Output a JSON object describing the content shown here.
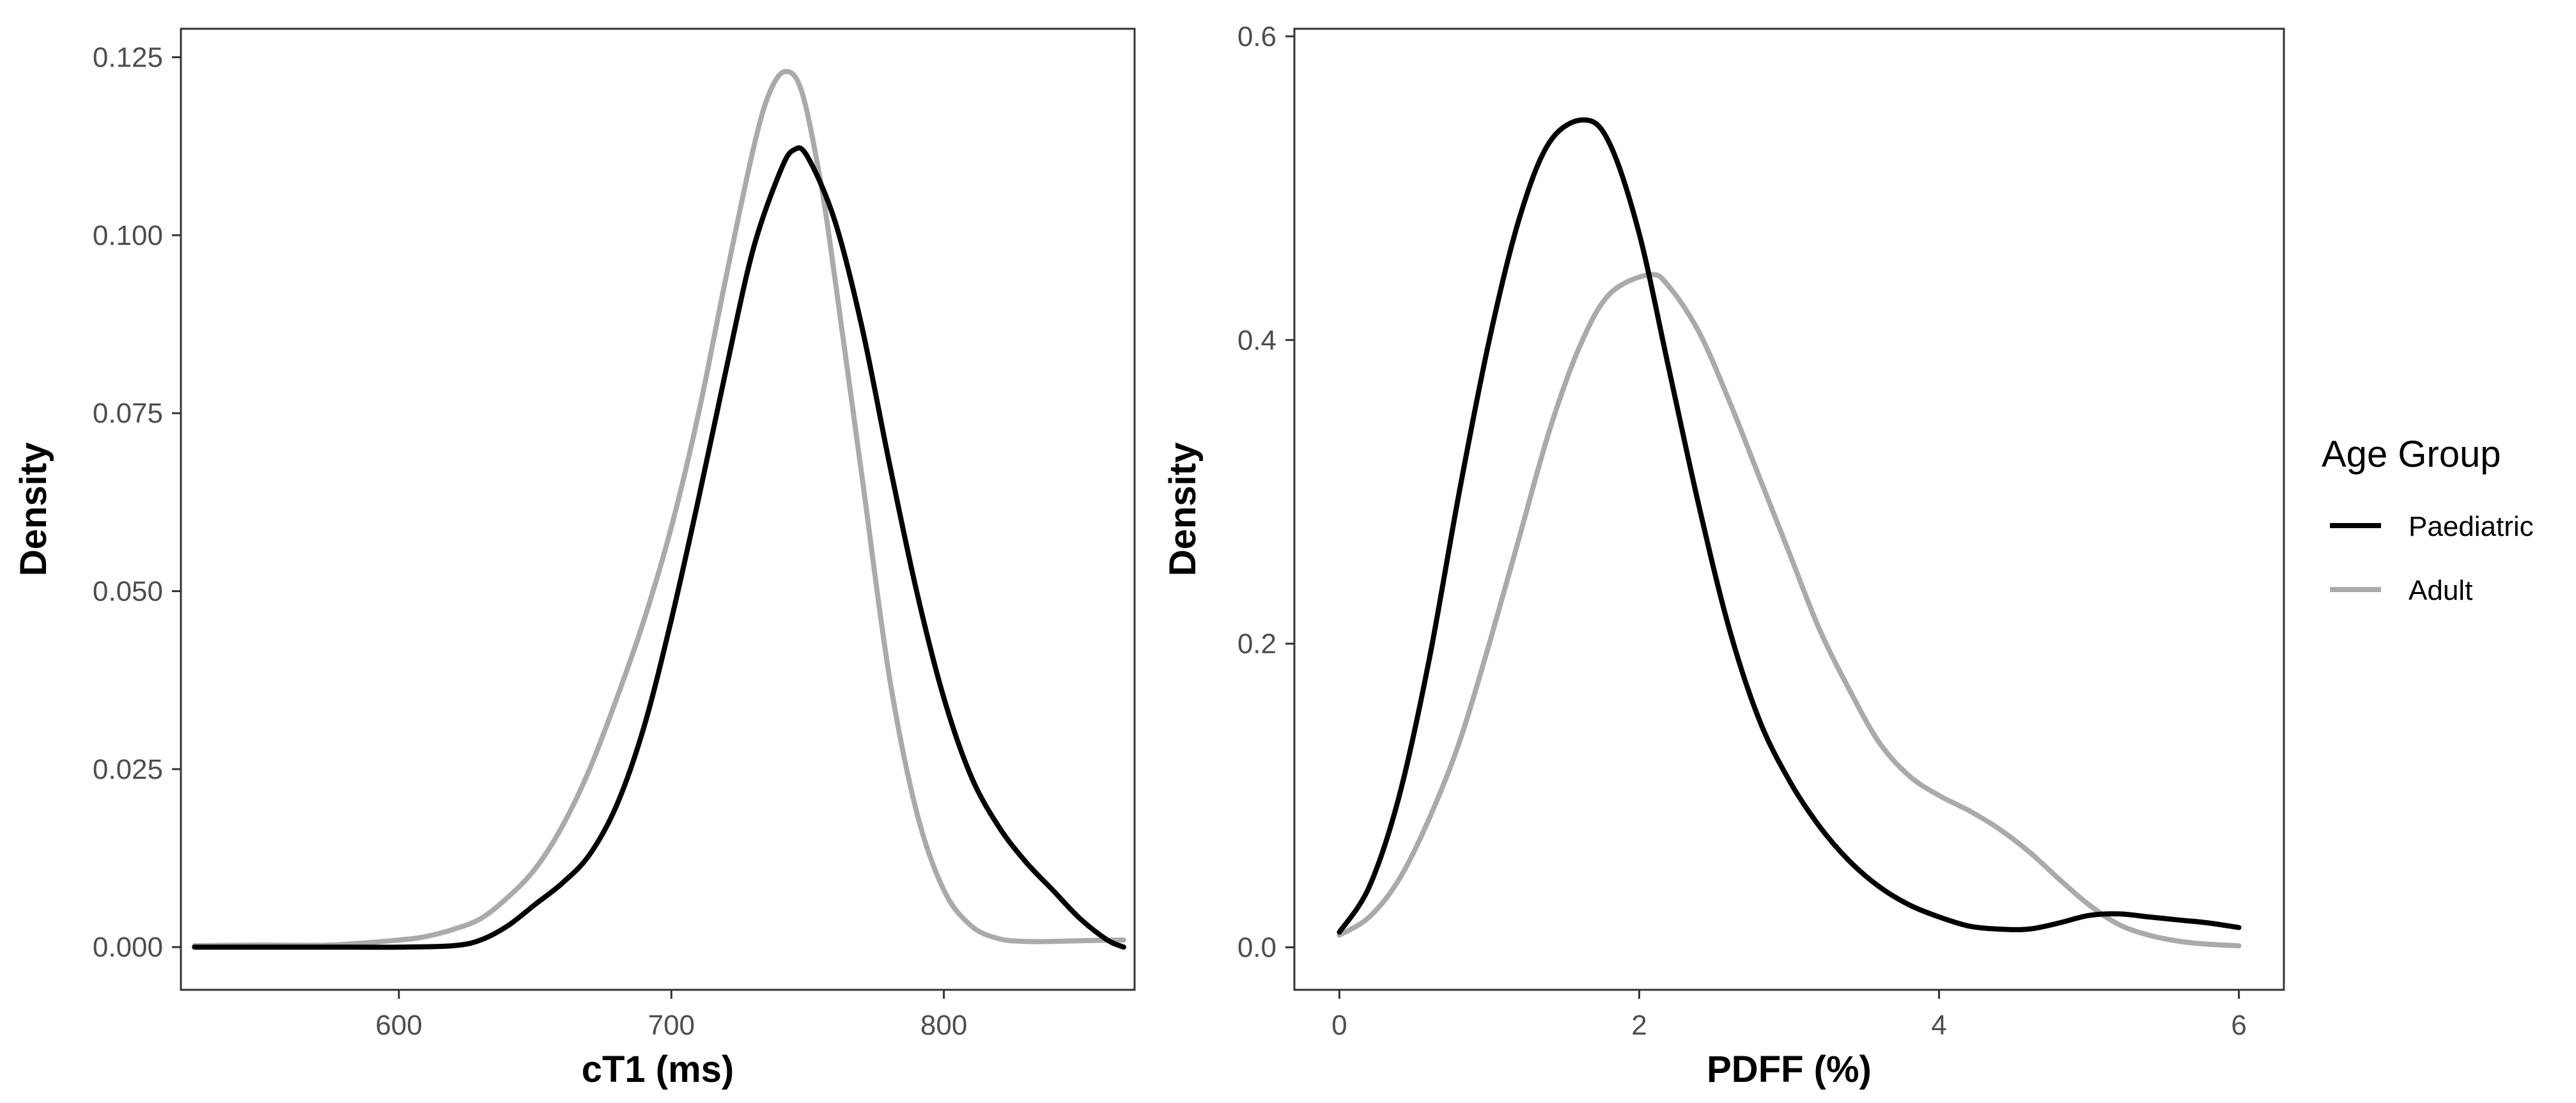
{
  "chart_data": [
    {
      "type": "line",
      "xlabel": "cT1 (ms)",
      "ylabel": "Density",
      "xlim": [
        520,
        870
      ],
      "ylim": [
        -0.006,
        0.129
      ],
      "xticks": [
        600,
        700,
        800
      ],
      "xtick_labels": [
        "600",
        "700",
        "800"
      ],
      "yticks": [
        0.0,
        0.025,
        0.05,
        0.075,
        0.1,
        0.125
      ],
      "ytick_labels": [
        "0.000",
        "0.025",
        "0.050",
        "0.075",
        "0.100",
        "0.125"
      ],
      "grid": false,
      "series": [
        {
          "name": "Paediatric",
          "color": "#000000",
          "x": [
            525,
            550,
            575,
            600,
            620,
            630,
            640,
            650,
            660,
            670,
            680,
            690,
            700,
            710,
            720,
            730,
            740,
            745,
            750,
            760,
            770,
            780,
            790,
            800,
            810,
            820,
            830,
            840,
            850,
            860,
            866
          ],
          "y": [
            0.0,
            0.0,
            0.0,
            0.0,
            0.0002,
            0.001,
            0.003,
            0.006,
            0.009,
            0.013,
            0.02,
            0.031,
            0.046,
            0.063,
            0.081,
            0.098,
            0.109,
            0.112,
            0.111,
            0.102,
            0.087,
            0.068,
            0.05,
            0.035,
            0.024,
            0.017,
            0.012,
            0.008,
            0.004,
            0.001,
            0.0
          ]
        },
        {
          "name": "Adult",
          "color": "#aaaaaa",
          "x": [
            525,
            550,
            575,
            600,
            610,
            620,
            630,
            640,
            650,
            660,
            670,
            680,
            690,
            700,
            710,
            720,
            730,
            736,
            742,
            748,
            755,
            760,
            770,
            780,
            790,
            800,
            810,
            820,
            830,
            840,
            850,
            866
          ],
          "y": [
            0.0002,
            0.0003,
            0.0003,
            0.001,
            0.0015,
            0.0025,
            0.004,
            0.007,
            0.011,
            0.017,
            0.025,
            0.035,
            0.046,
            0.059,
            0.075,
            0.094,
            0.112,
            0.12,
            0.123,
            0.12,
            0.107,
            0.094,
            0.066,
            0.038,
            0.019,
            0.008,
            0.003,
            0.0012,
            0.0008,
            0.0008,
            0.0009,
            0.001
          ]
        }
      ]
    },
    {
      "type": "line",
      "xlabel": "PDFF (%)",
      "ylabel": "Density",
      "xlim": [
        -0.3,
        6.3
      ],
      "ylim": [
        -0.028,
        0.605
      ],
      "xticks": [
        0,
        2,
        4,
        6
      ],
      "xtick_labels": [
        "0",
        "2",
        "4",
        "6"
      ],
      "yticks": [
        0.0,
        0.2,
        0.4,
        0.6
      ],
      "ytick_labels": [
        "0.0",
        "0.2",
        "0.4",
        "0.6"
      ],
      "grid": false,
      "series": [
        {
          "name": "Paediatric",
          "color": "#000000",
          "x": [
            0,
            0.2,
            0.4,
            0.6,
            0.8,
            1.0,
            1.2,
            1.4,
            1.63,
            1.8,
            2.0,
            2.2,
            2.4,
            2.6,
            2.8,
            3.0,
            3.2,
            3.4,
            3.6,
            3.8,
            4.0,
            4.2,
            4.4,
            4.6,
            4.8,
            5.0,
            5.2,
            5.4,
            5.6,
            5.8,
            6.0
          ],
          "y": [
            0.01,
            0.04,
            0.1,
            0.19,
            0.3,
            0.4,
            0.48,
            0.53,
            0.545,
            0.53,
            0.47,
            0.38,
            0.29,
            0.21,
            0.15,
            0.11,
            0.08,
            0.057,
            0.04,
            0.028,
            0.02,
            0.014,
            0.012,
            0.012,
            0.016,
            0.021,
            0.022,
            0.02,
            0.018,
            0.016,
            0.013
          ]
        },
        {
          "name": "Adult",
          "color": "#aaaaaa",
          "x": [
            0,
            0.2,
            0.4,
            0.6,
            0.8,
            1.0,
            1.2,
            1.4,
            1.6,
            1.8,
            2.07,
            2.2,
            2.4,
            2.6,
            2.8,
            3.0,
            3.2,
            3.4,
            3.6,
            3.8,
            4.0,
            4.2,
            4.4,
            4.6,
            4.8,
            5.0,
            5.2,
            5.4,
            5.6,
            5.8,
            6.0
          ],
          "y": [
            0.008,
            0.02,
            0.045,
            0.085,
            0.135,
            0.2,
            0.27,
            0.34,
            0.395,
            0.43,
            0.443,
            0.435,
            0.405,
            0.36,
            0.31,
            0.26,
            0.21,
            0.17,
            0.135,
            0.113,
            0.1,
            0.09,
            0.078,
            0.063,
            0.045,
            0.028,
            0.015,
            0.008,
            0.004,
            0.002,
            0.001
          ]
        }
      ]
    }
  ],
  "legend": {
    "title": "Age Group",
    "items": [
      {
        "label": "Paediatric",
        "color": "#000000"
      },
      {
        "label": "Adult",
        "color": "#aaaaaa"
      }
    ]
  }
}
